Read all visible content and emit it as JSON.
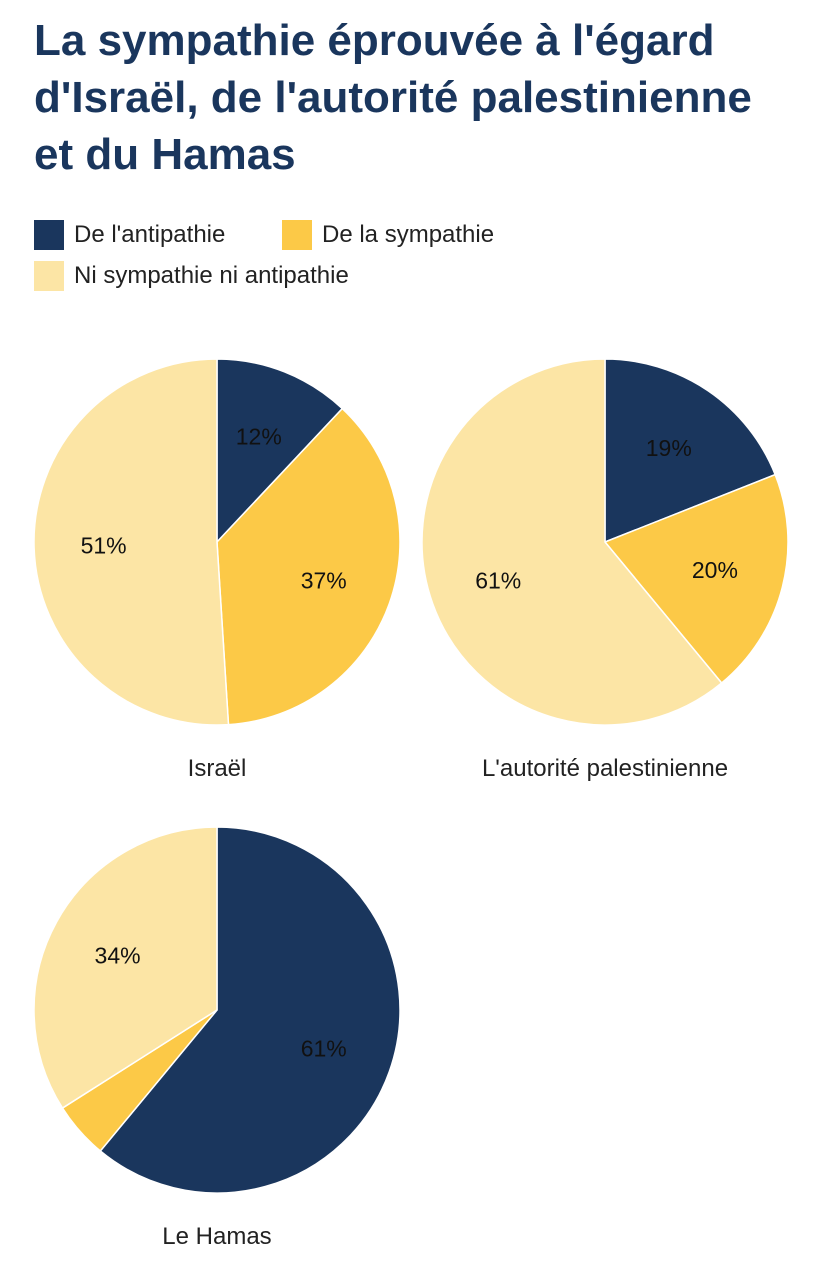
{
  "chart_data": {
    "type": "pie",
    "title": "La sympathie éprouvée à l'égard d'Israël, de l'autorité palestinienne et du Hamas",
    "legend": [
      {
        "name": "De l'antipathie",
        "color": "#1a365d"
      },
      {
        "name": "De la sympathie",
        "color": "#fcc947"
      },
      {
        "name": "Ni sympathie ni antipathie",
        "color": "#fce5a5"
      }
    ],
    "pies": [
      {
        "label": "Israël",
        "values": [
          12,
          37,
          51
        ],
        "labels": [
          "12%",
          "37%",
          "51%"
        ]
      },
      {
        "label": "L'autorité palestinienne",
        "values": [
          19,
          20,
          61
        ],
        "labels": [
          "19%",
          "20%",
          "61%"
        ]
      },
      {
        "label": "Le Hamas",
        "values": [
          61,
          5,
          34
        ],
        "labels": [
          "61%",
          "",
          "34%"
        ]
      }
    ]
  }
}
